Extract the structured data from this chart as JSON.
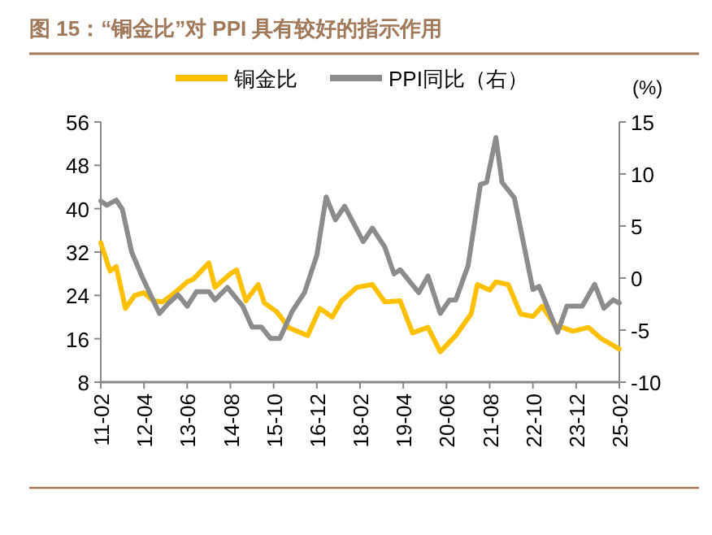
{
  "chart_data": {
    "type": "line",
    "title": "图 15：“铜金比”对 PPI 具有较好的指示作用",
    "y2label": "(%)",
    "xlim": [
      "2011-02",
      "2025-02"
    ],
    "xticks": [
      {
        "value": "2011-02",
        "label": "11-02"
      },
      {
        "value": "2012-04",
        "label": "12-04"
      },
      {
        "value": "2013-06",
        "label": "13-06"
      },
      {
        "value": "2014-08",
        "label": "14-08"
      },
      {
        "value": "2015-10",
        "label": "15-10"
      },
      {
        "value": "2016-12",
        "label": "16-12"
      },
      {
        "value": "2018-02",
        "label": "18-02"
      },
      {
        "value": "2019-04",
        "label": "19-04"
      },
      {
        "value": "2020-06",
        "label": "20-06"
      },
      {
        "value": "2021-08",
        "label": "21-08"
      },
      {
        "value": "2022-10",
        "label": "22-10"
      },
      {
        "value": "2023-12",
        "label": "23-12"
      },
      {
        "value": "2025-02",
        "label": "25-02"
      }
    ],
    "ylim": [
      8,
      56
    ],
    "yticks": [
      8,
      16,
      24,
      32,
      40,
      48,
      56
    ],
    "y2lim": [
      -10,
      15
    ],
    "y2ticks": [
      -10,
      -5,
      0,
      5,
      10,
      15
    ],
    "grid": false,
    "legend": "top",
    "marker": "none",
    "line_style": "solid",
    "series": [
      {
        "name": "铜金比",
        "color": "#ffc000",
        "x": [
          "2011-02",
          "2011-05",
          "2011-07",
          "2011-10",
          "2012-01",
          "2012-04",
          "2012-07",
          "2012-10",
          "2013-02",
          "2013-06",
          "2013-08",
          "2014-01",
          "2014-03",
          "2014-08",
          "2014-10",
          "2015-01",
          "2015-05",
          "2015-07",
          "2015-11",
          "2016-03",
          "2016-09",
          "2017-01",
          "2017-05",
          "2017-08",
          "2018-01",
          "2018-06",
          "2018-10",
          "2019-03",
          "2019-07",
          "2019-12",
          "2020-04",
          "2020-09",
          "2021-02",
          "2021-04",
          "2021-08",
          "2021-10",
          "2022-02",
          "2022-06",
          "2022-10",
          "2023-01",
          "2023-05",
          "2023-11",
          "2024-04",
          "2024-08",
          "2025-02"
        ],
        "values": [
          33.7,
          28.5,
          29.3,
          21.6,
          24,
          24.5,
          23,
          22.8,
          24.5,
          26.5,
          27,
          30,
          25.5,
          28,
          28.7,
          23,
          26,
          22.6,
          21,
          18,
          16.6,
          21.6,
          20,
          23,
          25.5,
          26,
          22.8,
          23,
          17.1,
          18.1,
          13.6,
          16.6,
          20.6,
          26,
          25,
          26.5,
          26,
          20.6,
          20.1,
          22,
          18.6,
          17.4,
          18.1,
          16.1,
          14.1
        ]
      },
      {
        "name": "PPI同比（右）",
        "color": "#8c8c8c",
        "axis": "y2",
        "x": [
          "2011-02",
          "2011-04",
          "2011-07",
          "2011-09",
          "2011-12",
          "2012-03",
          "2012-05",
          "2012-09",
          "2012-12",
          "2013-03",
          "2013-06",
          "2013-09",
          "2014-01",
          "2014-03",
          "2014-07",
          "2014-12",
          "2015-03",
          "2015-06",
          "2015-09",
          "2015-12",
          "2016-04",
          "2016-08",
          "2016-12",
          "2017-03",
          "2017-06",
          "2017-09",
          "2018-03",
          "2018-06",
          "2018-10",
          "2019-01",
          "2019-03",
          "2019-09",
          "2019-12",
          "2020-04",
          "2020-07",
          "2020-09",
          "2021-01",
          "2021-05",
          "2021-07",
          "2021-10",
          "2021-12",
          "2022-04",
          "2022-10",
          "2022-12",
          "2023-06",
          "2023-09",
          "2024-02",
          "2024-06",
          "2024-09",
          "2024-12",
          "2025-02"
        ],
        "values": [
          7.4,
          7,
          7.5,
          6.6,
          2.5,
          0.4,
          -0.9,
          -3.4,
          -2.4,
          -1.6,
          -2.7,
          -1.3,
          -1.3,
          -2.1,
          -0.9,
          -2.7,
          -4.7,
          -4.7,
          -5.8,
          -5.8,
          -3.2,
          -1.4,
          2.2,
          7.8,
          5.6,
          6.9,
          3.5,
          4.8,
          3,
          0.4,
          0.8,
          -1.4,
          0.2,
          -3.4,
          -2.1,
          -2.1,
          1.2,
          9,
          9.2,
          13.5,
          9.2,
          7.7,
          -1.1,
          -0.8,
          -5.2,
          -2.7,
          -2.7,
          -0.6,
          -2.9,
          -2.1,
          -2.4
        ]
      }
    ]
  }
}
